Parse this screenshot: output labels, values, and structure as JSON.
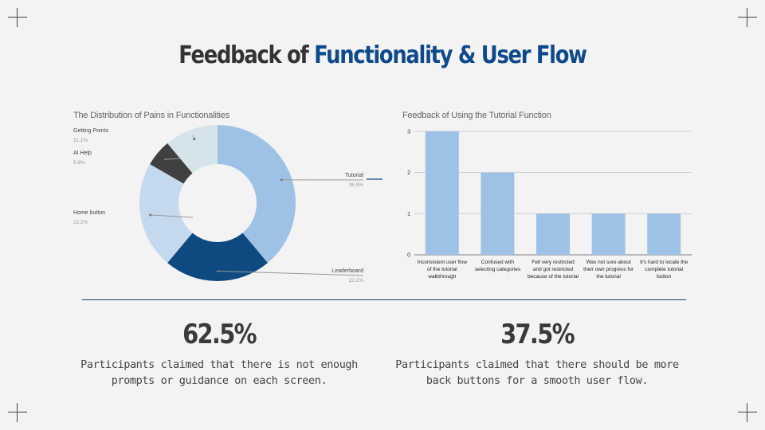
{
  "title": {
    "prefix": "Feedback of ",
    "accent": "Functionality & User Flow"
  },
  "colors": {
    "accent": "#0e4a8a",
    "text": "#333333"
  },
  "charts": [
    {
      "type": "pie",
      "title": "The Distribution of Pains in Functionalities",
      "donut": true,
      "slices": [
        {
          "label": "Tutorial",
          "value": 38.9,
          "value_label": "38.9%",
          "color": "#9ec2e6"
        },
        {
          "label": "Leaderboard",
          "value": 22.2,
          "value_label": "22.2%",
          "color": "#0e4a80"
        },
        {
          "label": "Home button",
          "value": 22.2,
          "value_label": "22.2%",
          "color": "#c5d9ee"
        },
        {
          "label": "AI Help",
          "value": 5.6,
          "value_label": "5.6%",
          "color": "#404040"
        },
        {
          "label": "Getting Points",
          "value": 11.1,
          "value_label": "11.1%",
          "color": "#d5e3ea"
        }
      ]
    },
    {
      "type": "bar",
      "title": "Feedback of Using the Tutorial Function",
      "categories": [
        [
          "Inconsistent user flow",
          "of the tutorial",
          "walkthrough"
        ],
        [
          "Confused with",
          "selecting categories"
        ],
        [
          "Felt very restricted",
          "and got restricted",
          "because of the tutorial"
        ],
        [
          "Was not sure about",
          "their own progress for",
          "the tutorial"
        ],
        [
          "It's hard to locate the",
          "complete tutorial",
          "button"
        ]
      ],
      "values": [
        3,
        2,
        1,
        1,
        1
      ],
      "ylim": [
        0,
        3
      ],
      "yticks": [
        "0",
        "1",
        "2",
        "3"
      ],
      "grid": true,
      "bar_color": "#9ec2e6"
    }
  ],
  "stats": [
    {
      "value": "62.5%",
      "description": "Participants claimed that there is not enough prompts or guidance on each screen."
    },
    {
      "value": "37.5%",
      "description": "Participants claimed that there should be more back buttons for a smooth user flow."
    }
  ]
}
